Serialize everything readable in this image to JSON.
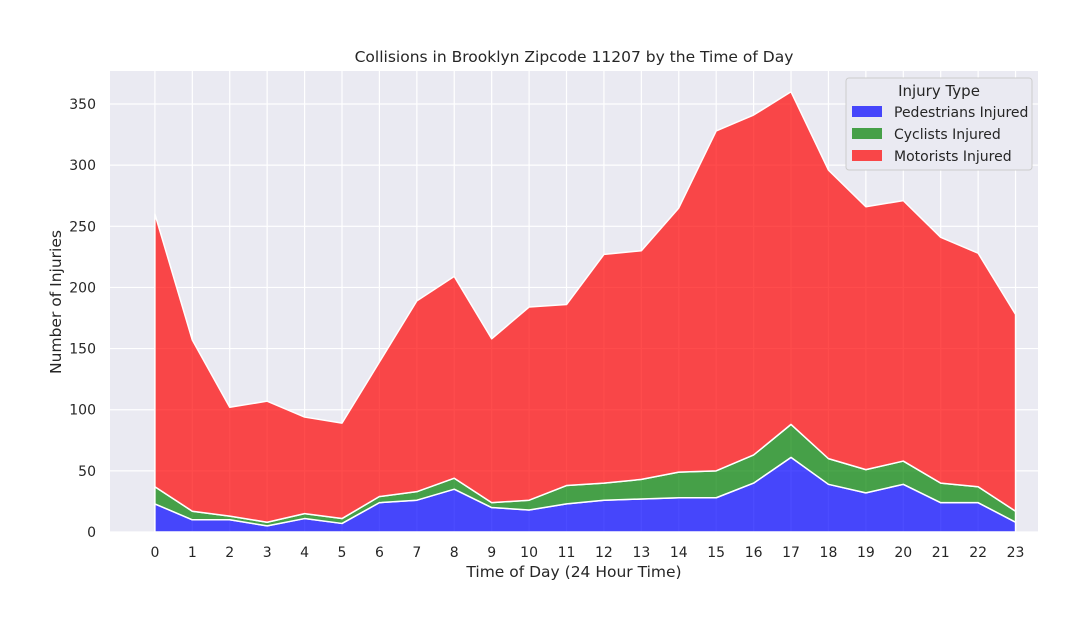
{
  "chart_data": {
    "type": "area",
    "stacked": true,
    "title": "Collisions in Brooklyn Zipcode 11207 by the Time of Day",
    "xlabel": "Time of Day (24 Hour Time)",
    "ylabel": "Number of Injuries",
    "x": [
      0,
      1,
      2,
      3,
      4,
      5,
      6,
      7,
      8,
      9,
      10,
      11,
      12,
      13,
      14,
      15,
      16,
      17,
      18,
      19,
      20,
      21,
      22,
      23
    ],
    "xlim": [
      -1.2,
      23.6
    ],
    "ylim": [
      0,
      377
    ],
    "yticks": [
      0,
      50,
      100,
      150,
      200,
      250,
      300,
      350
    ],
    "grid": true,
    "legend": {
      "title": "Injury Type",
      "placement": "top-right"
    },
    "series": [
      {
        "name": "Pedestrians Injured",
        "color": "#0000ff",
        "values": [
          23,
          10,
          10,
          5,
          11,
          7,
          24,
          26,
          35,
          20,
          18,
          23,
          26,
          27,
          28,
          28,
          40,
          61,
          39,
          32,
          39,
          24,
          24,
          8
        ]
      },
      {
        "name": "Cyclists Injured",
        "color": "#008000",
        "values": [
          14,
          7,
          3,
          3,
          4,
          4,
          5,
          7,
          9,
          4,
          8,
          15,
          14,
          16,
          21,
          22,
          23,
          27,
          21,
          19,
          19,
          16,
          13,
          9
        ]
      },
      {
        "name": "Motorists Injured",
        "color": "#ff0000",
        "values": [
          223,
          140,
          89,
          99,
          79,
          78,
          110,
          156,
          165,
          134,
          158,
          148,
          187,
          187,
          216,
          278,
          278,
          272,
          236,
          215,
          213,
          201,
          191,
          161
        ]
      }
    ]
  },
  "colors": {
    "plot_background": "#eaeaf2",
    "grid": "#ffffff",
    "text": "#262626"
  }
}
